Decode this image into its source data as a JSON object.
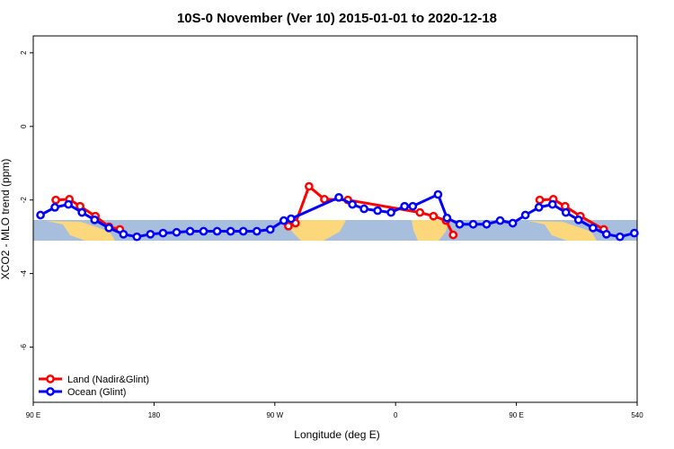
{
  "chart_data": {
    "type": "line",
    "title": "10S-0 November (Ver 10)   2015-01-01 to 2020-12-18",
    "x_label": "Longitude (deg E)",
    "y_label": "XCO2 - MLO trend (ppm)",
    "xlim": [
      90,
      540
    ],
    "xticks": [
      {
        "value": 90,
        "label": "90 E"
      },
      180,
      {
        "value": 270,
        "label": "90 W"
      },
      {
        "value": 360,
        "label": "0"
      },
      {
        "value": 450,
        "label": "90 E"
      },
      540
    ],
    "ylim": [
      -7.5,
      2.46
    ],
    "yticks": [
      2,
      0,
      -2,
      -4,
      -6
    ],
    "legend": "lower left",
    "series": [
      {
        "name": "Land (Nadir&Glint)",
        "color": "#ff0000",
        "x": [
          106.8,
          116.9,
          124.9,
          136.3,
          146.4,
          154.5,
          null,
          280.1,
          285.4,
          295.5,
          306.9,
          324.4,
          378.1,
          388.2,
          397.6,
          402.9,
          null,
          467.4,
          477.5,
          486.3,
          497.7,
          515.1
        ],
        "values": [
          -2.0,
          -1.98,
          -2.17,
          -2.44,
          -2.73,
          -2.8,
          null,
          -2.71,
          -2.63,
          -1.63,
          -1.98,
          -2.0,
          -2.34,
          -2.44,
          -2.56,
          -2.95,
          null,
          -2.0,
          -1.98,
          -2.17,
          -2.44,
          -2.8
        ]
      },
      {
        "name": "Ocean (Glint)",
        "color": "#0000ff",
        "x": [
          95.4,
          106.1,
          116.2,
          126.3,
          135.7,
          146.4,
          157.2,
          167.2,
          177.3,
          186.7,
          196.8,
          206.9,
          216.9,
          227.0,
          237.1,
          246.5,
          256.6,
          266.6,
          276.7,
          282.1,
          317.7,
          327.8,
          336.5,
          346.6,
          356.6,
          366.7,
          372.8,
          391.6,
          398.3,
          407.7,
          417.8,
          427.8,
          437.9,
          447.3,
          456.7,
          466.8,
          476.9,
          486.9,
          496.3,
          507.1,
          517.1,
          527.2,
          537.9
        ],
        "values": [
          -2.41,
          -2.2,
          -2.12,
          -2.34,
          -2.54,
          -2.76,
          -2.93,
          -3.0,
          -2.93,
          -2.9,
          -2.88,
          -2.85,
          -2.85,
          -2.85,
          -2.85,
          -2.85,
          -2.85,
          -2.8,
          -2.56,
          -2.51,
          -1.93,
          -2.12,
          -2.24,
          -2.29,
          -2.34,
          -2.17,
          -2.17,
          -1.85,
          -2.49,
          -2.66,
          -2.66,
          -2.66,
          -2.56,
          -2.63,
          -2.41,
          -2.2,
          -2.12,
          -2.34,
          -2.54,
          -2.76,
          -2.93,
          -3.0,
          -2.9
        ]
      }
    ]
  }
}
